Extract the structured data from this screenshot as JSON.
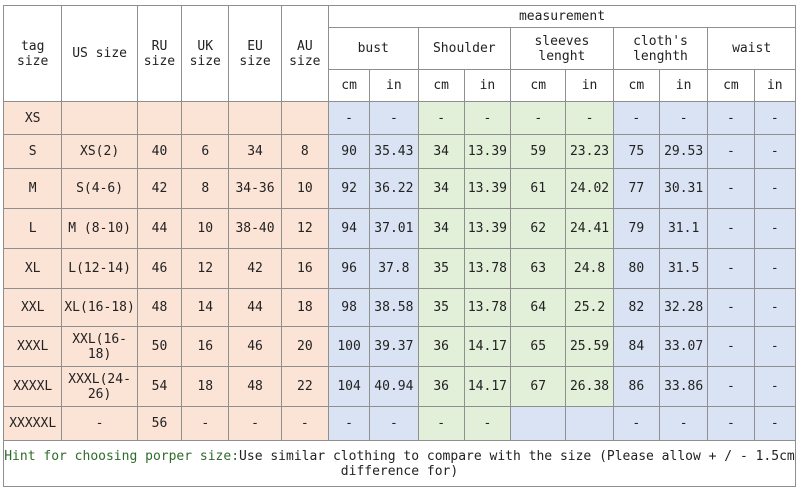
{
  "headers": {
    "tag_size": "tag size",
    "us_size": "US size",
    "ru_size": "RU size",
    "uk_size": "UK size",
    "eu_size": "EU size",
    "au_size": "AU size",
    "measurement": "measurement",
    "bust": "bust",
    "shoulder": "Shoulder",
    "sleeves": "sleeves lenght",
    "cloths": "cloth's lenghth",
    "waist": "waist",
    "units": [
      "cm",
      "in",
      "cm",
      "in",
      "cm",
      "in",
      "cm",
      "in",
      "cm",
      "in"
    ]
  },
  "rows": [
    [
      "XS",
      "",
      "",
      "",
      "",
      "",
      "-",
      "-",
      "-",
      "-",
      "-",
      "-",
      "-",
      "-",
      "-",
      "-"
    ],
    [
      "S",
      "XS(2)",
      "40",
      "6",
      "34",
      "8",
      "90",
      "35.43",
      "34",
      "13.39",
      "59",
      "23.23",
      "75",
      "29.53",
      "-",
      "-"
    ],
    [
      "M",
      "S(4-6)",
      "42",
      "8",
      "34-36",
      "10",
      "92",
      "36.22",
      "34",
      "13.39",
      "61",
      "24.02",
      "77",
      "30.31",
      "-",
      "-"
    ],
    [
      "L",
      "M (8-10)",
      "44",
      "10",
      "38-40",
      "12",
      "94",
      "37.01",
      "34",
      "13.39",
      "62",
      "24.41",
      "79",
      "31.1",
      "-",
      "-"
    ],
    [
      "XL",
      "L(12-14)",
      "46",
      "12",
      "42",
      "16",
      "96",
      "37.8",
      "35",
      "13.78",
      "63",
      "24.8",
      "80",
      "31.5",
      "-",
      "-"
    ],
    [
      "XXL",
      "XL(16-18)",
      "48",
      "14",
      "44",
      "18",
      "98",
      "38.58",
      "35",
      "13.78",
      "64",
      "25.2",
      "82",
      "32.28",
      "-",
      "-"
    ],
    [
      "XXXL",
      "XXL(16-18)",
      "50",
      "16",
      "46",
      "20",
      "100",
      "39.37",
      "36",
      "14.17",
      "65",
      "25.59",
      "84",
      "33.07",
      "-",
      "-"
    ],
    [
      "XXXXL",
      "XXXL(24-26)",
      "54",
      "18",
      "48",
      "22",
      "104",
      "40.94",
      "36",
      "14.17",
      "67",
      "26.38",
      "86",
      "33.86",
      "-",
      "-"
    ],
    [
      "XXXXXL",
      "-",
      "56",
      "-",
      "-",
      "-",
      "-",
      "-",
      "-",
      "-",
      "",
      "",
      "-",
      "-",
      "-",
      "-"
    ]
  ],
  "hint": {
    "label": "Hint for choosing porper size:",
    "text": "Use similar clothing to compare with the size (Please allow + / - 1.5cm difference for)"
  }
}
